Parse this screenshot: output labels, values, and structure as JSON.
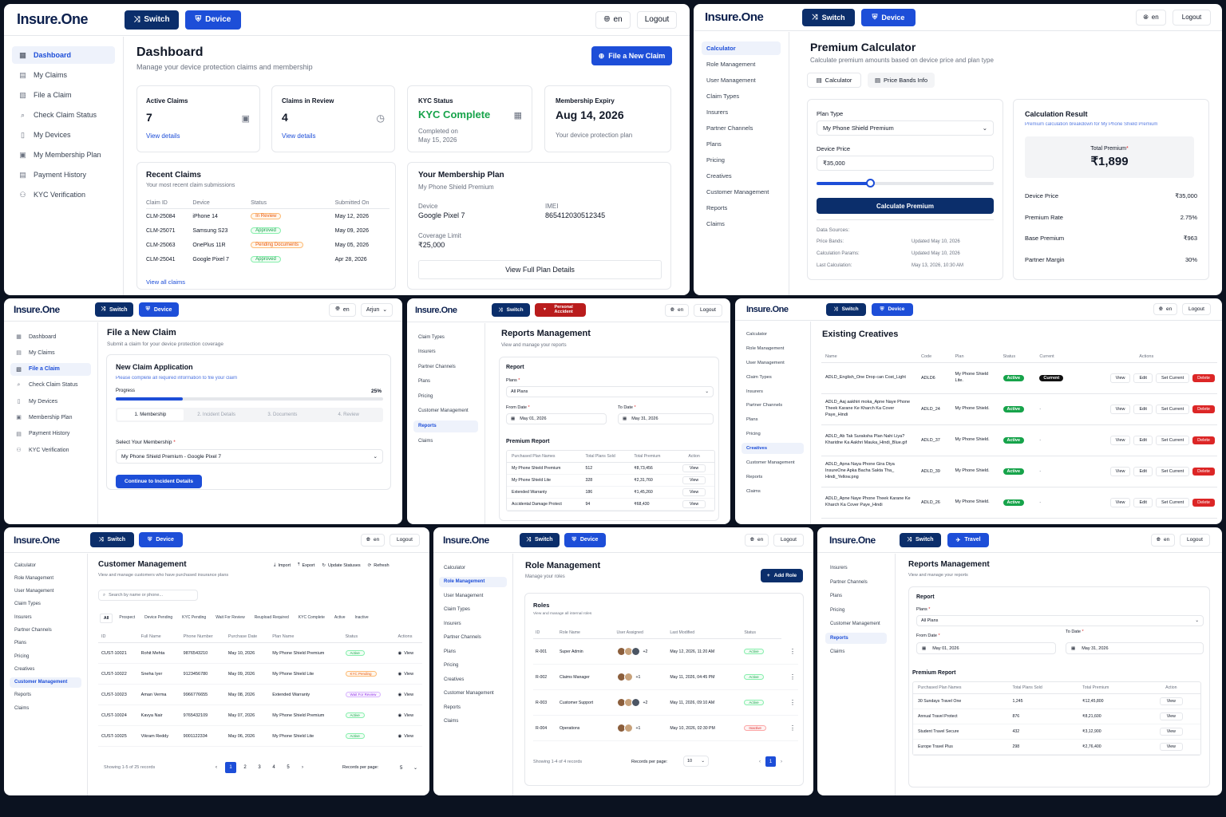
{
  "brand": "Insure.One",
  "p1": {
    "switch": "Switch",
    "device": "Device",
    "lang": "en",
    "logout": "Logout",
    "nav": [
      "Dashboard",
      "My Claims",
      "File a Claim",
      "Check Claim Status",
      "My Devices",
      "My Membership Plan",
      "Payment History",
      "KYC Verification"
    ],
    "nav_icons": [
      "dashboard-icon",
      "claims-icon",
      "file-icon",
      "search-icon",
      "device-icon",
      "membership-icon",
      "payment-icon",
      "kyc-icon"
    ],
    "title": "Dashboard",
    "subtitle": "Manage your device protection claims and membership",
    "file_claim": "File a New Claim",
    "stats": [
      {
        "label": "Active Claims",
        "value": "7",
        "link": "View details"
      },
      {
        "label": "Claims in Review",
        "value": "4",
        "link": "View details"
      }
    ],
    "kyc": {
      "label": "KYC Status",
      "value": "KYC Complete",
      "sub1": "Completed on",
      "sub2": "May 15, 2026"
    },
    "expiry": {
      "label": "Membership Expiry",
      "value": "Aug 14, 2026",
      "sub": "Your device protection plan"
    },
    "recent": {
      "title": "Recent Claims",
      "subtitle": "Your most recent claim submissions",
      "cols": [
        "Claim ID",
        "Device",
        "Status",
        "Submitted On"
      ],
      "rows": [
        [
          "CLM-25084",
          "iPhone 14",
          "In Review",
          "May 12, 2026"
        ],
        [
          "CLM-25071",
          "Samsung S23",
          "Approved",
          "May 09, 2026"
        ],
        [
          "CLM-25063",
          "OnePlus 11R",
          "Pending Documents",
          "May 05, 2026"
        ],
        [
          "CLM-25041",
          "Google Pixel 7",
          "Approved",
          "Apr 28, 2026"
        ]
      ],
      "link": "View all claims"
    },
    "plan": {
      "title": "Your Membership Plan",
      "name": "My Phone Shield Premium",
      "device_label": "Device",
      "device": "Google Pixel 7",
      "imei_label": "IMEI",
      "imei": "865412030512345",
      "cov_label": "Coverage Limit",
      "cov": "₹25,000",
      "btn": "View Full Plan Details"
    }
  },
  "p2": {
    "switch": "Switch",
    "device": "Device",
    "lang": "en",
    "logout": "Logout",
    "nav": [
      "Calculator",
      "Role Management",
      "User Management",
      "Claim Types",
      "Insurers",
      "Partner Channels",
      "Plans",
      "Pricing",
      "Creatives",
      "Customer Management",
      "Reports",
      "Claims"
    ],
    "title": "Premium Calculator",
    "subtitle": "Calculate premium amounts based on device price and plan type",
    "tabs": [
      "Calculator",
      "Price Bands Info"
    ],
    "plan_type_label": "Plan Type",
    "plan_type": "My Phone Shield Premium",
    "device_price_label": "Device Price",
    "device_price": "₹35,000",
    "slider": 0.3,
    "calc_btn": "Calculate Premium",
    "sources": {
      "title": "Data Sources:",
      "rows": [
        [
          "Price Bands:",
          "Updated May 10, 2026"
        ],
        [
          "Calculation Params:",
          "Updated May 10, 2026"
        ],
        [
          "Last Calculation:",
          "May 13, 2026, 10:30 AM"
        ]
      ]
    },
    "result": {
      "title": "Calculation Result",
      "subtitle": "Premium calculation breakdown for My Phone Shield Premium",
      "total_label": "Total Premium",
      "total": "₹1,899",
      "rows": [
        [
          "Device Price",
          "₹35,000"
        ],
        [
          "Premium Rate",
          "2.75%"
        ],
        [
          "Base Premium",
          "₹963"
        ],
        [
          "Partner Margin",
          "30%"
        ]
      ]
    }
  },
  "p3": {
    "switch": "Switch",
    "device": "Device",
    "lang": "en",
    "user": "Arjun",
    "nav": [
      "Dashboard",
      "My Claims",
      "File a Claim",
      "Check Claim Status",
      "My Devices",
      "Membership Plan",
      "Payment History",
      "KYC Verification"
    ],
    "title": "File a New Claim",
    "subtitle": "Submit a claim for your device protection coverage",
    "card_title": "New Claim Application",
    "card_sub": "Please complete all required information to file your claim",
    "progress_label": "Progress",
    "progress": "25%",
    "progress_val": 0.25,
    "steps": [
      "1.  Membership",
      "2.  Incident Details",
      "3.  Documents",
      "4.  Review"
    ],
    "select_label": "Select Your Membership",
    "select_value": "My Phone Shield Premium - Google Pixel 7",
    "continue": "Continue to Incident Details"
  },
  "p4": {
    "switch": "Switch",
    "device": "Personal Accident",
    "lang": "en",
    "logout": "Logout",
    "nav": [
      "Claim Types",
      "Insurers",
      "Partner Channels",
      "Plans",
      "Pricing",
      "Customer Management",
      "Reports",
      "Claims"
    ],
    "title": "Reports Management",
    "subtitle": "View and manage your reports",
    "report_label": "Report",
    "plans_label": "Plans",
    "plans_value": "All Plans",
    "from_label": "From Date",
    "from": "May 01, 2026",
    "to_label": "To Date",
    "to": "May 31, 2026",
    "premium_title": "Premium Report",
    "cols": [
      "Purchased Plan Names",
      "Total Plans Sold",
      "Total Premium",
      "Action"
    ],
    "rows": [
      [
        "My Phone Shield Premium",
        "512",
        "₹8,73,456"
      ],
      [
        "My Phone Shield Lite",
        "328",
        "₹2,31,760"
      ],
      [
        "Extended Warranty",
        "186",
        "₹1,45,260"
      ],
      [
        "Accidental Damage Protect",
        "94",
        "₹68,430"
      ]
    ],
    "view": "View"
  },
  "p5": {
    "switch": "Switch",
    "device": "Device",
    "lang": "en",
    "logout": "Logout",
    "nav": [
      "Calculator",
      "Role Management",
      "User Management",
      "Claim Types",
      "Insurers",
      "Partner Channels",
      "Plans",
      "Pricing",
      "Creatives",
      "Customer Management",
      "Reports",
      "Claims"
    ],
    "title": "Existing Creatives",
    "cols": [
      "Name",
      "Code",
      "Plan",
      "Status",
      "Current",
      "Actions"
    ],
    "rows": [
      {
        "name": "ADLD_English_One Drop can Cost_Light",
        "code": "ADLD6",
        "plan": "My Phone Shield Lite.",
        "status": "Active",
        "current": "Current"
      },
      {
        "name": "ADLD_Aaj aakhiri moka_Apne Naye Phone Theek Karane Ke Kharch Ka Cover Paye_Hindi",
        "code": "ADLD_24",
        "plan": "My Phone Shield.",
        "status": "Active",
        "current": "-"
      },
      {
        "name": "ADLD_Ab Tak Suraksha Plan Nahi Liya? Kharidne Ka Aakhri Mauka_Hindi_Blue.gif",
        "code": "ADLD_37",
        "plan": "My Phone Shield.",
        "status": "Active",
        "current": "-"
      },
      {
        "name": "ADLD_Apna Naya Phone Gira Diya InsureOne Apka Bacha Sakta Tha_ Hindi_Yellow.png",
        "code": "ADLD_39",
        "plan": "My Phone Shield.",
        "status": "Active",
        "current": "-"
      },
      {
        "name": "ADLD_Apne Naye Phone Theek Karane Ke Kharch Ka Cover Paye_Hindi",
        "code": "ADLD_26",
        "plan": "My Phone Shield.",
        "status": "Active",
        "current": "-"
      }
    ],
    "actions": [
      "View",
      "Edit",
      "Set Current",
      "Delete"
    ]
  },
  "p6": {
    "switch": "Switch",
    "device": "Device",
    "lang": "en",
    "logout": "Logout",
    "nav": [
      "Calculator",
      "Role Management",
      "User Management",
      "Claim Types",
      "Insurers",
      "Partner Channels",
      "Plans",
      "Pricing",
      "Creatives",
      "Customer Management",
      "Reports",
      "Claims"
    ],
    "title": "Customer Management",
    "subtitle": "View and manage customers who have purchased insurance plans",
    "tools": [
      "Import",
      "Export",
      "Update Statuses",
      "Refresh"
    ],
    "search": "Search by name or phone...",
    "filters": [
      "All",
      "Prospect",
      "Device Pending",
      "KYC Pending",
      "Wait For Review",
      "Reupload Required",
      "KYC Complete",
      "Active",
      "Inactive"
    ],
    "cols": [
      "ID",
      "Full Name",
      "Phone Number",
      "Purchase Date",
      "Plan Name",
      "Status",
      "Actions"
    ],
    "rows": [
      [
        "CUST-10021",
        "Rohit Mehta",
        "9876543210",
        "May 10, 2026",
        "My Phone Shield Premium",
        "Active"
      ],
      [
        "CUST-10022",
        "Sneha Iyer",
        "9123456780",
        "May 09, 2026",
        "My Phone Shield Lite",
        "KYC Pending"
      ],
      [
        "CUST-10023",
        "Aman Verma",
        "9966776655",
        "May 08, 2026",
        "Extended Warranty",
        "Wait For Review"
      ],
      [
        "CUST-10024",
        "Kavya Nair",
        "9765432109",
        "May 07, 2026",
        "My Phone Shield Premium",
        "Active"
      ],
      [
        "CUST-10025",
        "Vikram Reddy",
        "9001122334",
        "May 06, 2026",
        "My Phone Shield Lite",
        "Active"
      ]
    ],
    "view": "View",
    "showing": "Showing 1-5 of 25 records",
    "pages": [
      "1",
      "2",
      "3",
      "4",
      "5"
    ],
    "rpp_label": "Records per page:",
    "rpp": "5"
  },
  "p7": {
    "switch": "Switch",
    "device": "Device",
    "lang": "en",
    "logout": "Logout",
    "nav": [
      "Calculator",
      "Role Management",
      "User Management",
      "Claim Types",
      "Insurers",
      "Partner Channels",
      "Plans",
      "Pricing",
      "Creatives",
      "Customer Management",
      "Reports",
      "Claims"
    ],
    "title": "Role Management",
    "subtitle": "Manage your roles",
    "add": "Add Role",
    "roles_title": "Roles",
    "roles_sub": "View and manage all internal roles",
    "cols": [
      "ID",
      "Role Name",
      "User Assigned",
      "Last Modified",
      "Status"
    ],
    "rows": [
      [
        "R-001",
        "Super Admin",
        "+2",
        "May 12, 2026, 11:20 AM",
        "Active"
      ],
      [
        "R-002",
        "Claims Manager",
        "+1",
        "May 11, 2026, 04:45 PM",
        "Active"
      ],
      [
        "R-003",
        "Customer Support",
        "+2",
        "May 11, 2026, 09:10 AM",
        "Active"
      ],
      [
        "R-004",
        "Operations",
        "+1",
        "May 10, 2026, 02:30 PM",
        "Inactive"
      ]
    ],
    "showing": "Showing 1-4 of 4 records",
    "rpp_label": "Records per page:",
    "rpp": "10",
    "page": "1"
  },
  "p8": {
    "switch": "Switch",
    "device": "Travel",
    "lang": "en",
    "logout": "Logout",
    "nav": [
      "Insurers",
      "Partner Channels",
      "Plans",
      "Pricing",
      "Customer Management",
      "Reports",
      "Claims"
    ],
    "title": "Reports Management",
    "subtitle": "View and manage your reports",
    "report_label": "Report",
    "plans_label": "Plans",
    "plans_value": "All Plans",
    "from_label": "From Date",
    "from": "May 01, 2026",
    "to_label": "To Date",
    "to": "May 31, 2026",
    "premium_title": "Premium Report",
    "cols": [
      "Purchased Plan Names",
      "Total Plans Sold",
      "Total Premium",
      "Action"
    ],
    "rows": [
      [
        "30 Sundays Travel One",
        "1,245",
        "₹12,45,800"
      ],
      [
        "Annual Travel Protect",
        "876",
        "₹8,21,600"
      ],
      [
        "Student Travel Secure",
        "432",
        "₹3,12,900"
      ],
      [
        "Europe Travel Plus",
        "298",
        "₹2,76,400"
      ]
    ],
    "view": "View"
  }
}
